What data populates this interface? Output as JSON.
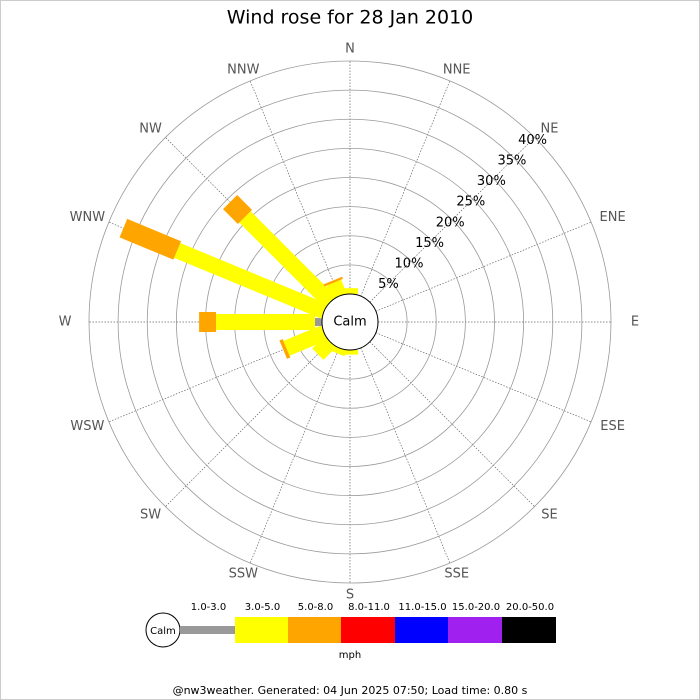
{
  "chart_data": {
    "type": "windrose",
    "title": "Wind rose for 28 Jan 2010",
    "directions": [
      "N",
      "NNE",
      "NE",
      "ENE",
      "E",
      "ESE",
      "SE",
      "SSE",
      "S",
      "SSW",
      "SW",
      "WSW",
      "W",
      "WNW",
      "NW",
      "NNW"
    ],
    "center_label": "Calm",
    "rlim": [
      0,
      40
    ],
    "rticks": [
      {
        "value": 5,
        "label": "5%"
      },
      {
        "value": 10,
        "label": "10%"
      },
      {
        "value": 15,
        "label": "15%"
      },
      {
        "value": 20,
        "label": "20%"
      },
      {
        "value": 25,
        "label": "25%"
      },
      {
        "value": 30,
        "label": "30%"
      },
      {
        "value": 35,
        "label": "35%"
      },
      {
        "value": 40,
        "label": "40%"
      }
    ],
    "series": [
      {
        "name": "1.0-3.0",
        "color": "#999999",
        "values": [
          0,
          0,
          0,
          0,
          0,
          0,
          0,
          0,
          0,
          0,
          0,
          0,
          1.2,
          0,
          0,
          0
        ]
      },
      {
        "name": "3.0-5.0",
        "color": "#ffff00",
        "values": [
          1,
          0,
          0,
          0,
          0,
          0,
          0,
          0,
          0.8,
          1,
          3,
          7,
          17,
          27.3,
          20.7,
          2.5
        ]
      },
      {
        "name": "5.0-8.0",
        "color": "#ffa500",
        "values": [
          0,
          0,
          0,
          0,
          0,
          0,
          0,
          0,
          0,
          0,
          0,
          0.6,
          2.9,
          10,
          3.6,
          0.4
        ]
      },
      {
        "name": "8.0-11.0",
        "color": "#ff0000",
        "values": [
          0,
          0,
          0,
          0,
          0,
          0,
          0,
          0,
          0,
          0,
          0,
          0,
          0,
          0,
          0,
          0
        ]
      },
      {
        "name": "11.0-15.0",
        "color": "#0000ff",
        "values": [
          0,
          0,
          0,
          0,
          0,
          0,
          0,
          0,
          0,
          0,
          0,
          0,
          0,
          0,
          0,
          0
        ]
      },
      {
        "name": "15.0-20.0",
        "color": "#a020f0",
        "values": [
          0,
          0,
          0,
          0,
          0,
          0,
          0,
          0,
          0,
          0,
          0,
          0,
          0,
          0,
          0,
          0
        ]
      },
      {
        "name": "20.0-50.0",
        "color": "#000000",
        "values": [
          0,
          0,
          0,
          0,
          0,
          0,
          0,
          0,
          0,
          0,
          0,
          0,
          0,
          0,
          0,
          0
        ]
      }
    ],
    "legend_calm": "Calm",
    "units": "mph",
    "footer": "@nw3weather. Generated: 04 Jun 2025 07:50; Load time: 0.80 s"
  }
}
